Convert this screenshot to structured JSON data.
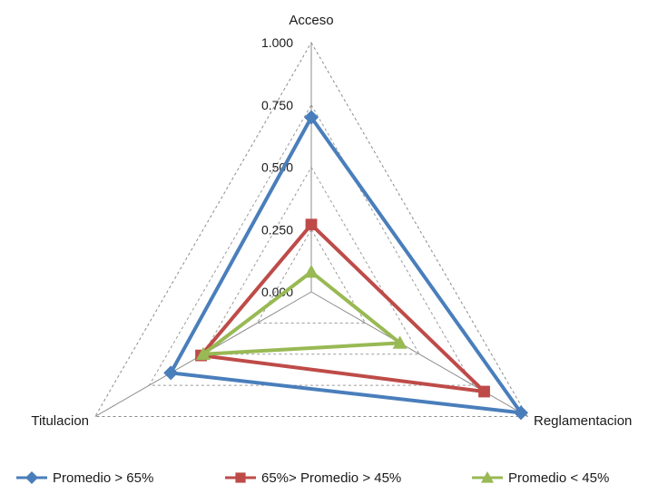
{
  "chart_data": {
    "type": "radar",
    "axes": [
      "Acceso",
      "Reglamentacion",
      "Titulacion"
    ],
    "tick_labels": [
      "0.000",
      "0.250",
      "0.500",
      "0.750",
      "1.000"
    ],
    "rlim": [
      0,
      1
    ],
    "grid": true,
    "legend_position": "bottom",
    "series": [
      {
        "name": "Promedio > 65%",
        "color": "#4a7ebb",
        "marker": "diamond",
        "values": [
          0.7,
          0.97,
          0.65
        ]
      },
      {
        "name": "65%> Promedio > 45%",
        "color": "#be4b48",
        "marker": "square",
        "values": [
          0.27,
          0.8,
          0.51
        ]
      },
      {
        "name": "Promedio < 45%",
        "color": "#98b954",
        "marker": "triangle",
        "values": [
          0.08,
          0.41,
          0.5
        ]
      }
    ]
  }
}
